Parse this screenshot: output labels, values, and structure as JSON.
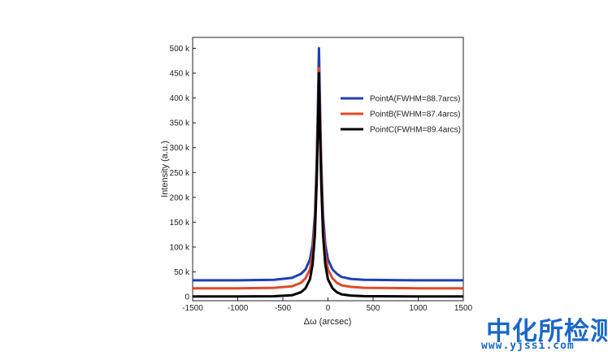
{
  "chart_data": {
    "type": "line",
    "title": "",
    "xlabel": "Δω (arcsec)",
    "ylabel": "Intensity (a.u.)",
    "xlim": [
      -1500,
      1500
    ],
    "ylim": [
      -8000,
      522000
    ],
    "x_ticks": [
      -1500,
      -1000,
      -500,
      0,
      500,
      1000,
      1500
    ],
    "x_tick_labels": [
      "-1500",
      "-1000",
      "-500",
      "0",
      "500",
      "1000",
      "1500"
    ],
    "y_ticks": [
      0,
      50000,
      100000,
      150000,
      200000,
      250000,
      300000,
      350000,
      400000,
      450000,
      500000
    ],
    "y_tick_labels": [
      "0",
      "50 k",
      "100 k",
      "150 k",
      "200 k",
      "250 k",
      "300 k",
      "350 k",
      "400 k",
      "450 k",
      "500 k"
    ],
    "grid": false,
    "legend_position": "top-right",
    "series": [
      {
        "name": "PointA(FWHM=88.7arcs)",
        "color": "#1f3fb4",
        "x": [
          -1500,
          -1000,
          -600,
          -400,
          -300,
          -250,
          -200,
          -170,
          -145,
          -125,
          -110,
          -100,
          -90,
          -75,
          -55,
          -30,
          0,
          50,
          100,
          150,
          250,
          400,
          1000,
          1500
        ],
        "y": [
          33000,
          33000,
          34000,
          38000,
          46000,
          55000,
          75000,
          105000,
          165000,
          270000,
          400000,
          500000,
          400000,
          270000,
          165000,
          105000,
          75000,
          55000,
          46000,
          40000,
          36000,
          34000,
          33000,
          33000
        ]
      },
      {
        "name": "PointB(FWHM=87.4arcs)",
        "color": "#e04a2a",
        "x": [
          -1500,
          -1000,
          -600,
          -400,
          -300,
          -250,
          -200,
          -170,
          -145,
          -125,
          -110,
          -100,
          -90,
          -75,
          -55,
          -30,
          0,
          50,
          100,
          150,
          250,
          400,
          1000,
          1500
        ],
        "y": [
          17000,
          17000,
          18000,
          21000,
          28000,
          37000,
          55000,
          85000,
          145000,
          250000,
          370000,
          460000,
          370000,
          250000,
          145000,
          85000,
          55000,
          37000,
          28000,
          23000,
          20000,
          18000,
          17000,
          17000
        ]
      },
      {
        "name": "PointC(FWHM=89.4arcs)",
        "color": "#000000",
        "x": [
          -1500,
          -1000,
          -600,
          -400,
          -300,
          -250,
          -200,
          -170,
          -145,
          -125,
          -110,
          -100,
          -90,
          -75,
          -55,
          -30,
          0,
          50,
          100,
          150,
          250,
          400,
          1000,
          1500
        ],
        "y": [
          500,
          500,
          1000,
          3000,
          9000,
          17000,
          35000,
          65000,
          125000,
          230000,
          350000,
          450000,
          350000,
          230000,
          125000,
          65000,
          35000,
          17000,
          9000,
          5000,
          2500,
          1200,
          500,
          500
        ]
      }
    ]
  },
  "watermark": {
    "text_cn": "中化所检测",
    "url": "www.yjssi.com"
  }
}
